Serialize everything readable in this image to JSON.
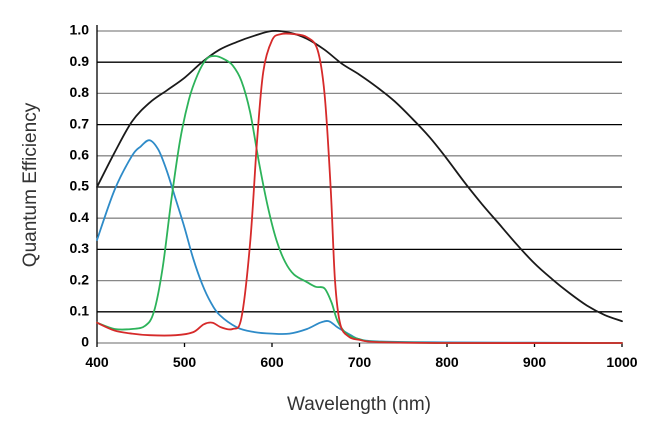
{
  "chart_data": {
    "type": "line",
    "title": "",
    "xlabel": "Wavelength (nm)",
    "ylabel": "Quantum Efficiency",
    "xlim": [
      400,
      1000
    ],
    "ylim": [
      0,
      1.0
    ],
    "x_ticks": [
      "400",
      "500",
      "600",
      "700",
      "800",
      "900",
      "1000"
    ],
    "y_ticks": [
      "0",
      "0.1",
      "0.2",
      "0.3",
      "0.4",
      "0.5",
      "0.6",
      "0.7",
      "0.8",
      "0.9",
      "1.0"
    ],
    "grid": true,
    "series": [
      {
        "name": "mono",
        "color": "#1a1a1a",
        "points": [
          [
            400,
            0.5
          ],
          [
            420,
            0.61
          ],
          [
            440,
            0.71
          ],
          [
            460,
            0.77
          ],
          [
            480,
            0.81
          ],
          [
            500,
            0.85
          ],
          [
            520,
            0.9
          ],
          [
            540,
            0.94
          ],
          [
            560,
            0.965
          ],
          [
            580,
            0.985
          ],
          [
            600,
            1.0
          ],
          [
            620,
            0.995
          ],
          [
            640,
            0.975
          ],
          [
            660,
            0.94
          ],
          [
            680,
            0.895
          ],
          [
            700,
            0.86
          ],
          [
            720,
            0.82
          ],
          [
            740,
            0.775
          ],
          [
            760,
            0.72
          ],
          [
            780,
            0.66
          ],
          [
            800,
            0.59
          ],
          [
            820,
            0.515
          ],
          [
            840,
            0.445
          ],
          [
            860,
            0.38
          ],
          [
            880,
            0.315
          ],
          [
            900,
            0.255
          ],
          [
            920,
            0.205
          ],
          [
            940,
            0.16
          ],
          [
            960,
            0.12
          ],
          [
            980,
            0.09
          ],
          [
            1000,
            0.07
          ]
        ]
      },
      {
        "name": "blue",
        "color": "#2e8bc8",
        "points": [
          [
            400,
            0.33
          ],
          [
            420,
            0.49
          ],
          [
            440,
            0.6
          ],
          [
            450,
            0.63
          ],
          [
            460,
            0.65
          ],
          [
            470,
            0.62
          ],
          [
            480,
            0.55
          ],
          [
            490,
            0.46
          ],
          [
            500,
            0.37
          ],
          [
            510,
            0.27
          ],
          [
            520,
            0.19
          ],
          [
            530,
            0.13
          ],
          [
            540,
            0.09
          ],
          [
            560,
            0.05
          ],
          [
            580,
            0.035
          ],
          [
            600,
            0.03
          ],
          [
            620,
            0.03
          ],
          [
            640,
            0.045
          ],
          [
            655,
            0.065
          ],
          [
            665,
            0.07
          ],
          [
            675,
            0.05
          ],
          [
            690,
            0.025
          ],
          [
            700,
            0.012
          ],
          [
            720,
            0.005
          ],
          [
            800,
            0.002
          ],
          [
            1000,
            0.0
          ]
        ]
      },
      {
        "name": "green",
        "color": "#2db35a",
        "points": [
          [
            400,
            0.065
          ],
          [
            420,
            0.045
          ],
          [
            440,
            0.045
          ],
          [
            455,
            0.055
          ],
          [
            465,
            0.1
          ],
          [
            475,
            0.24
          ],
          [
            485,
            0.46
          ],
          [
            495,
            0.65
          ],
          [
            505,
            0.78
          ],
          [
            515,
            0.86
          ],
          [
            525,
            0.91
          ],
          [
            535,
            0.92
          ],
          [
            545,
            0.91
          ],
          [
            555,
            0.89
          ],
          [
            565,
            0.84
          ],
          [
            575,
            0.74
          ],
          [
            585,
            0.58
          ],
          [
            595,
            0.44
          ],
          [
            605,
            0.33
          ],
          [
            615,
            0.26
          ],
          [
            625,
            0.22
          ],
          [
            640,
            0.195
          ],
          [
            650,
            0.18
          ],
          [
            660,
            0.175
          ],
          [
            668,
            0.13
          ],
          [
            675,
            0.07
          ],
          [
            685,
            0.03
          ],
          [
            700,
            0.012
          ],
          [
            720,
            0.004
          ],
          [
            800,
            0.0
          ],
          [
            1000,
            0.0
          ]
        ]
      },
      {
        "name": "red",
        "color": "#d62a2a",
        "points": [
          [
            400,
            0.065
          ],
          [
            420,
            0.04
          ],
          [
            440,
            0.03
          ],
          [
            460,
            0.025
          ],
          [
            490,
            0.025
          ],
          [
            510,
            0.035
          ],
          [
            522,
            0.06
          ],
          [
            532,
            0.065
          ],
          [
            542,
            0.05
          ],
          [
            555,
            0.045
          ],
          [
            565,
            0.08
          ],
          [
            575,
            0.32
          ],
          [
            583,
            0.65
          ],
          [
            590,
            0.87
          ],
          [
            600,
            0.97
          ],
          [
            610,
            0.99
          ],
          [
            625,
            0.99
          ],
          [
            640,
            0.98
          ],
          [
            652,
            0.94
          ],
          [
            660,
            0.8
          ],
          [
            667,
            0.5
          ],
          [
            672,
            0.2
          ],
          [
            678,
            0.06
          ],
          [
            688,
            0.02
          ],
          [
            700,
            0.01
          ],
          [
            720,
            0.003
          ],
          [
            800,
            0.0
          ],
          [
            1000,
            0.0
          ]
        ]
      }
    ]
  }
}
